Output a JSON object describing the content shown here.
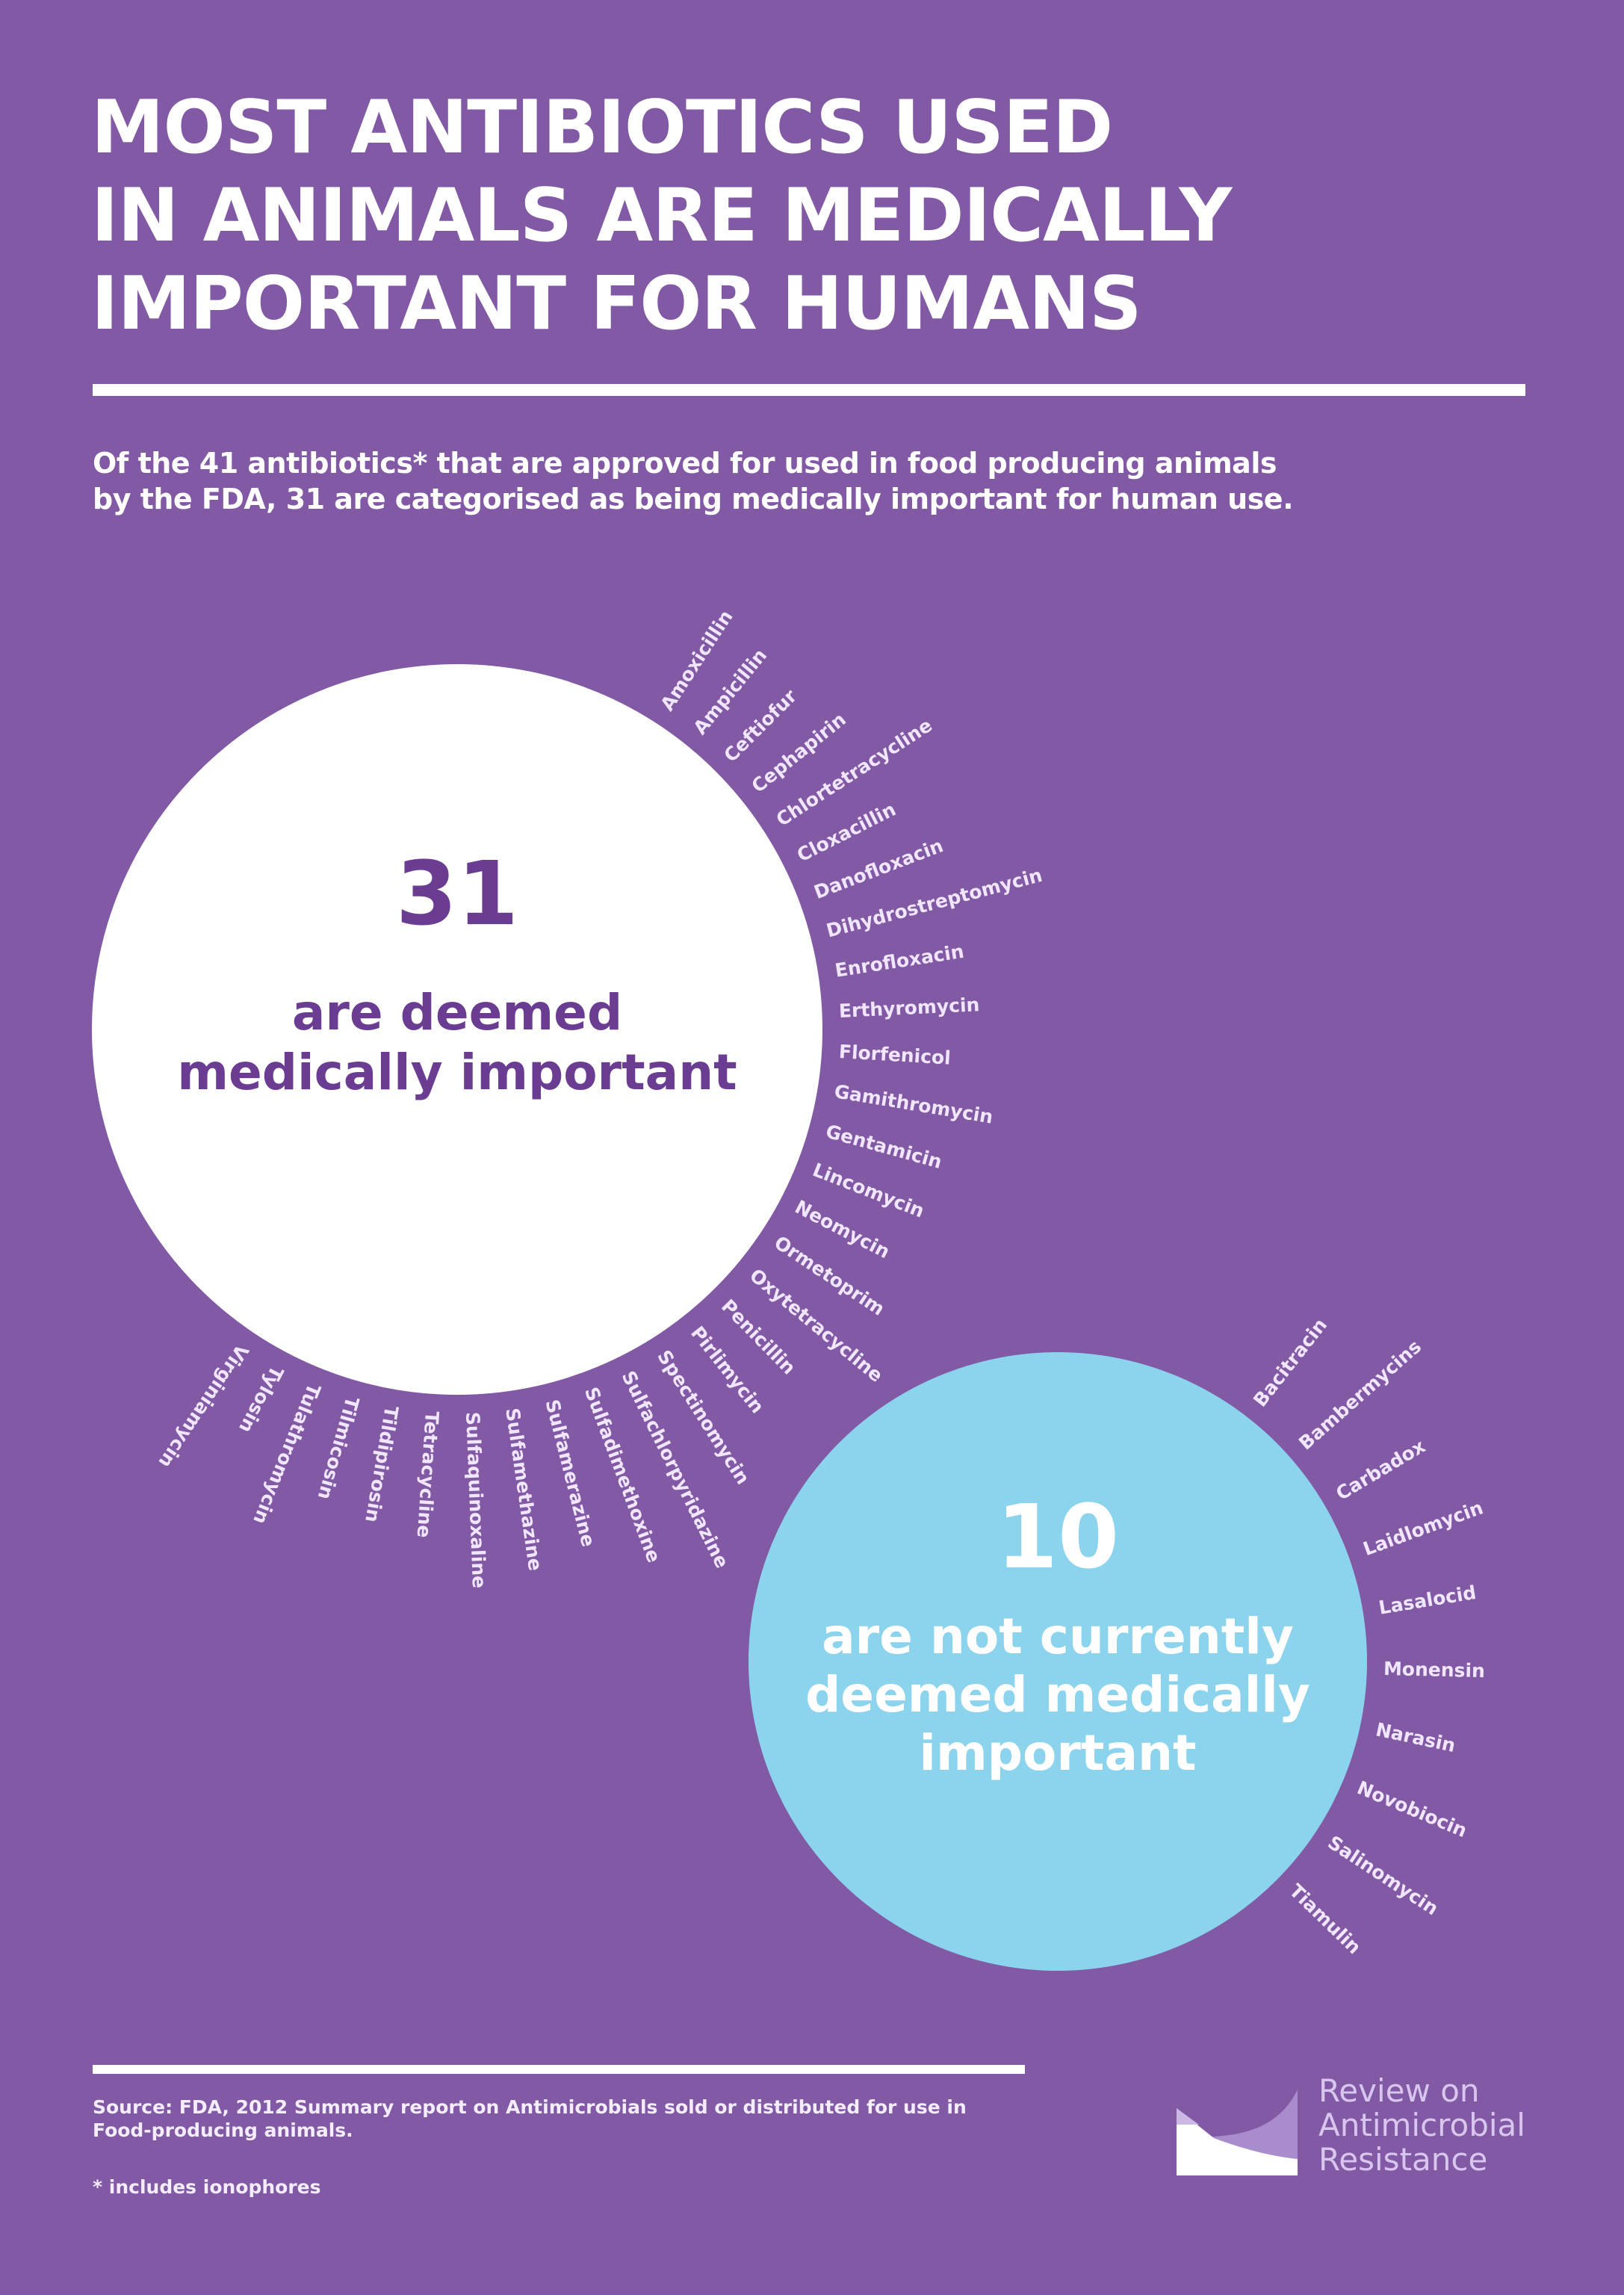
{
  "header": {
    "title_lines": [
      "MOST ANTIBIOTICS USED",
      "IN ANIMALS ARE MEDICALLY",
      "IMPORTANT FOR HUMANS"
    ],
    "subtitle_lines": [
      "Of the 41 antibiotics* that are approved for used in food producing animals",
      "by the FDA, 31 are categorised as being medically important for human use."
    ]
  },
  "colors": {
    "background": "#8159a4",
    "white_circle": "#ffffff",
    "white_circle_text": "#6b3d92",
    "cyan_circle": "#8cd4ee",
    "label_text": "#f1e6ff"
  },
  "important": {
    "count": "31",
    "desc_lines": [
      "are deemed",
      "medically important"
    ],
    "labels": [
      "Amoxicillin",
      "Ampicillin",
      "Ceftiofur",
      "Cephapirin",
      "Chlortetracycline",
      "Cloxacillin",
      "Danofloxacin",
      "Dihydrostreptomycin",
      "Enrofloxacin",
      "Erthyromycin",
      "Florfenicol",
      "Gamithromycin",
      "Gentamicin",
      "Lincomycin",
      "Neomycin",
      "Ormetoprim",
      "Oxytetracycline",
      "Penicillin",
      "Pirlimycin",
      "Spectinomycin",
      "Sulfachlorpyridazine",
      "Sulfadimethoxine",
      "Sulfamerazine",
      "Sulfamethazine",
      "Sulfaquinoxaline",
      "Tetracycline",
      "Tildipirosin",
      "Tilmicosin",
      "Tulathromycin",
      "Tylosin",
      "Virginiamycin"
    ]
  },
  "not_important": {
    "count": "10",
    "desc_lines": [
      "are not currently",
      "deemed medically",
      "important"
    ],
    "labels": [
      "Bacitracin",
      "Bambermycins",
      "Carbadox",
      "Laidlomycin",
      "Lasalocid",
      "Monensin",
      "Narasin",
      "Novobiocin",
      "Salinomycin",
      "Tiamulin"
    ]
  },
  "chart_data": {
    "type": "pie",
    "title": "Most antibiotics used in animals are medically important for humans",
    "categories": [
      "Medically important",
      "Not currently deemed medically important"
    ],
    "values": [
      31,
      10
    ],
    "total": 41,
    "series": [
      {
        "name": "Medically important",
        "values": [
          31
        ],
        "items": [
          "Amoxicillin",
          "Ampicillin",
          "Ceftiofur",
          "Cephapirin",
          "Chlortetracycline",
          "Cloxacillin",
          "Danofloxacin",
          "Dihydrostreptomycin",
          "Enrofloxacin",
          "Erthyromycin",
          "Florfenicol",
          "Gamithromycin",
          "Gentamicin",
          "Lincomycin",
          "Neomycin",
          "Ormetoprim",
          "Oxytetracycline",
          "Penicillin",
          "Pirlimycin",
          "Spectinomycin",
          "Sulfachlorpyridazine",
          "Sulfadimethoxine",
          "Sulfamerazine",
          "Sulfamethazine",
          "Sulfaquinoxaline",
          "Tetracycline",
          "Tildipirosin",
          "Tilmicosin",
          "Tulathromycin",
          "Tylosin",
          "Virginiamycin"
        ]
      },
      {
        "name": "Not currently deemed medically important",
        "values": [
          10
        ],
        "items": [
          "Bacitracin",
          "Bambermycins",
          "Carbadox",
          "Laidlomycin",
          "Lasalocid",
          "Monensin",
          "Narasin",
          "Novobiocin",
          "Salinomycin",
          "Tiamulin"
        ]
      }
    ]
  },
  "footer": {
    "source_lines": [
      "Source: FDA, 2012 Summary report on Antimicrobials sold or distributed for use in",
      "Food-producing animals."
    ],
    "note": "* includes ionophores",
    "logo_lines": [
      "Review on",
      "Antimicrobial",
      "Resistance"
    ]
  }
}
